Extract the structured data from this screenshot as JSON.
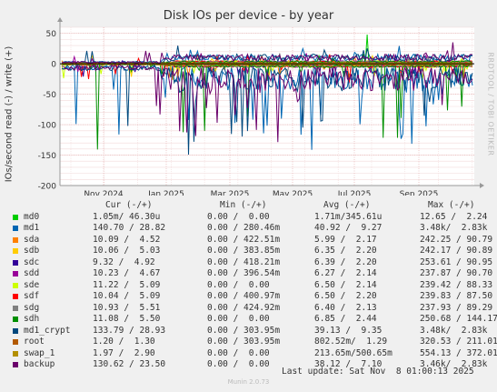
{
  "title": "Disk IOs per device - by year",
  "ylabel": "IOs/second read (-) / write (+)",
  "watermark": "RRDTOOL / TOBI OETIKER",
  "chart_data": {
    "type": "line",
    "ylim": [
      -200,
      60
    ],
    "yticks": [
      50,
      0,
      -50,
      -100,
      -150,
      -200
    ],
    "xticks": [
      "Nov 2024",
      "Jan 2025",
      "Mar 2025",
      "May 2025",
      "Jul 2025",
      "Sep 2025"
    ],
    "grid": true,
    "series": [
      {
        "name": "md0",
        "color": "#00cc00"
      },
      {
        "name": "md1",
        "color": "#0066b3"
      },
      {
        "name": "sda",
        "color": "#ff8000"
      },
      {
        "name": "sdb",
        "color": "#ffcc00"
      },
      {
        "name": "sdc",
        "color": "#330099"
      },
      {
        "name": "sdd",
        "color": "#990099"
      },
      {
        "name": "sde",
        "color": "#ccff00"
      },
      {
        "name": "sdf",
        "color": "#ff0000"
      },
      {
        "name": "sdg",
        "color": "#808080"
      },
      {
        "name": "sdh",
        "color": "#008f00"
      },
      {
        "name": "md1_crypt",
        "color": "#00487d"
      },
      {
        "name": "root",
        "color": "#b35a00"
      },
      {
        "name": "swap_1",
        "color": "#b38f00"
      },
      {
        "name": "backup",
        "color": "#6b006b"
      }
    ]
  },
  "legend": {
    "headers": {
      "cur": "Cur (-/+)",
      "min": "Min (-/+)",
      "avg": "Avg (-/+)",
      "max": "Max (-/+)"
    },
    "rows": [
      {
        "name": "md0",
        "cur": "1.05m/ 46.30u",
        "min": "0.00 /  0.00",
        "avg": "1.71m/345.61u",
        "max": "12.65 /  2.24"
      },
      {
        "name": "md1",
        "cur": "140.70 / 28.82",
        "min": "0.00 / 280.46m",
        "avg": "40.92 /  9.27",
        "max": "3.48k/  2.83k"
      },
      {
        "name": "sda",
        "cur": "10.09 /  4.52",
        "min": "0.00 / 422.51m",
        "avg": "5.99 /  2.17",
        "max": "242.25 / 90.79"
      },
      {
        "name": "sdb",
        "cur": "10.06 /  5.03",
        "min": "0.00 / 383.85m",
        "avg": "6.35 /  2.20",
        "max": "242.17 / 90.89"
      },
      {
        "name": "sdc",
        "cur": "9.32 /  4.92",
        "min": "0.00 / 418.21m",
        "avg": "6.39 /  2.20",
        "max": "253.61 / 90.95"
      },
      {
        "name": "sdd",
        "cur": "10.23 /  4.67",
        "min": "0.00 / 396.54m",
        "avg": "6.27 /  2.14",
        "max": "237.87 / 90.70"
      },
      {
        "name": "sde",
        "cur": "11.22 /  5.09",
        "min": "0.00 /  0.00",
        "avg": "6.50 /  2.14",
        "max": "239.42 / 88.33"
      },
      {
        "name": "sdf",
        "cur": "10.04 /  5.09",
        "min": "0.00 / 400.97m",
        "avg": "6.50 /  2.20",
        "max": "239.83 / 87.50"
      },
      {
        "name": "sdg",
        "cur": "10.93 /  5.51",
        "min": "0.00 / 424.92m",
        "avg": "6.40 /  2.13",
        "max": "237.93 / 89.29"
      },
      {
        "name": "sdh",
        "cur": "11.08 /  5.50",
        "min": "0.00 /  0.00",
        "avg": "6.85 /  2.44",
        "max": "250.68 / 144.17"
      },
      {
        "name": "md1_crypt",
        "cur": "133.79 / 28.93",
        "min": "0.00 / 303.95m",
        "avg": "39.13 /  9.35",
        "max": "3.48k/  2.83k"
      },
      {
        "name": "root",
        "cur": "1.20 /  1.30",
        "min": "0.00 / 303.95m",
        "avg": "802.52m/  1.29",
        "max": "320.53 / 211.01"
      },
      {
        "name": "swap_1",
        "cur": "1.97 /  2.90",
        "min": "0.00 /  0.00",
        "avg": "213.65m/500.65m",
        "max": "554.13 / 372.01"
      },
      {
        "name": "backup",
        "cur": "130.62 / 23.50",
        "min": "0.00 /  0.00",
        "avg": "38.12 /  7.10",
        "max": "3.46k/  2.83k"
      }
    ]
  },
  "last_update": "Last update: Sat Nov  8 01:00:13 2025",
  "footer": "Munin 2.0.73"
}
